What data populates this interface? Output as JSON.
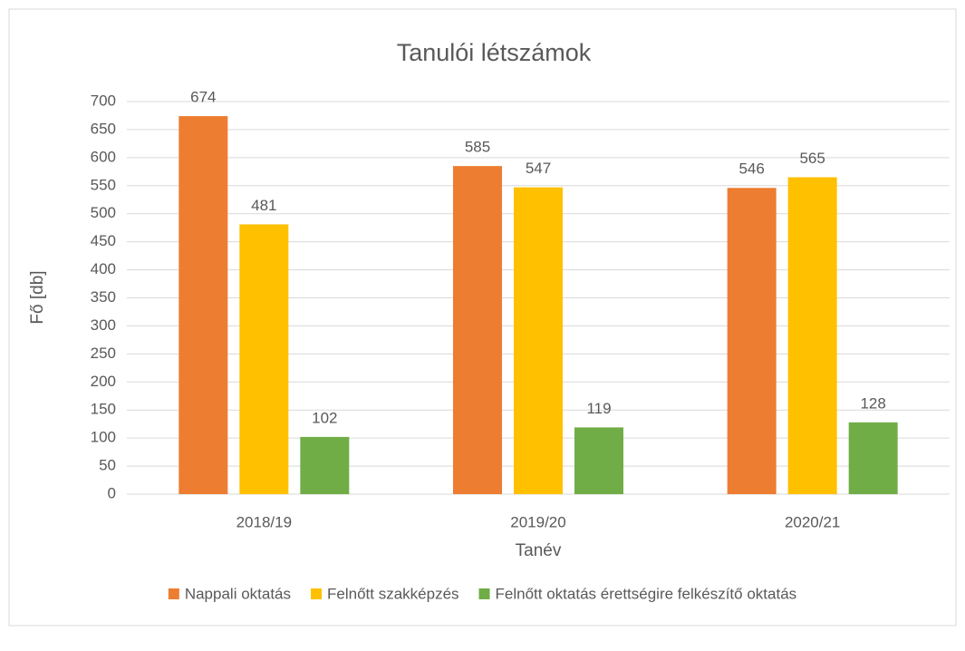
{
  "chart_data": {
    "type": "bar",
    "title": "Tanulói létszámok",
    "x_label": "Tanév",
    "y_label": "Fő [db]",
    "categories": [
      "2018/19",
      "2019/20",
      "2020/21"
    ],
    "series": [
      {
        "name": "Nappali oktatás",
        "color": "#ed7d31",
        "values": [
          674,
          585,
          546
        ]
      },
      {
        "name": "Felnőtt szakképzés",
        "color": "#ffc000",
        "values": [
          481,
          547,
          565
        ]
      },
      {
        "name": "Felnőtt oktatás érettségire felkészítő oktatás",
        "color": "#70ad47",
        "values": [
          102,
          119,
          128
        ]
      }
    ],
    "ylim": [
      0,
      700
    ],
    "yticks": [
      0,
      50,
      100,
      150,
      200,
      250,
      300,
      350,
      400,
      450,
      500,
      550,
      600,
      650,
      700
    ],
    "grid": true,
    "legend": "bottom"
  }
}
